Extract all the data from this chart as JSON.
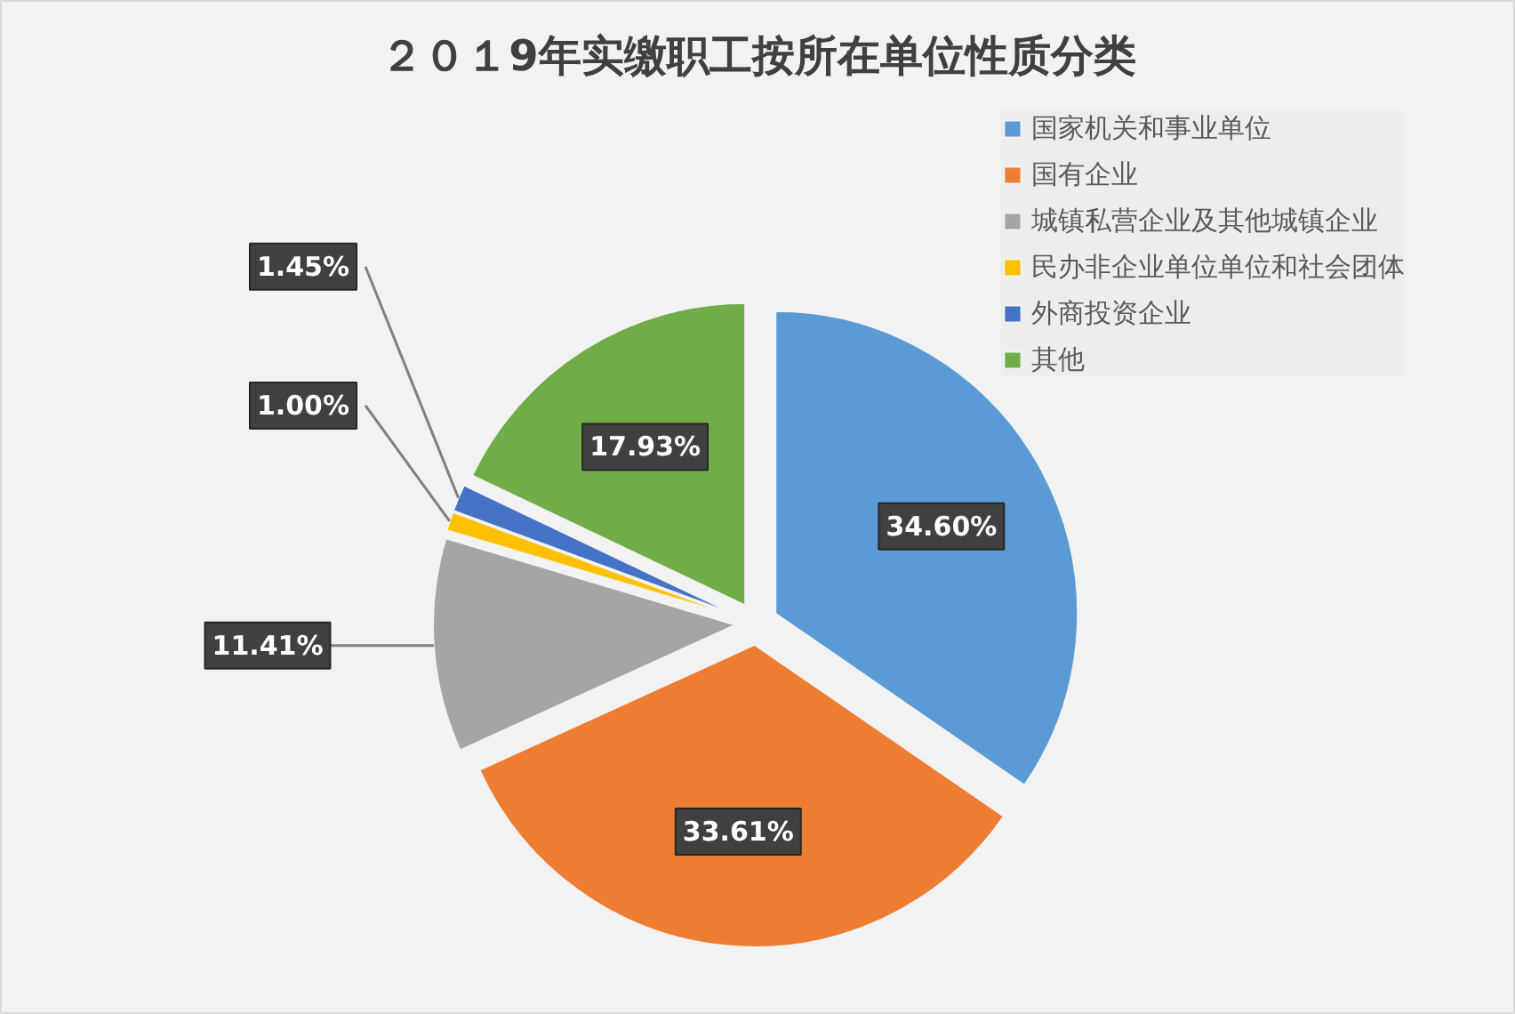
{
  "chart_data": {
    "type": "pie",
    "title": "２０１9年实缴职工按所在单位性质分类",
    "categories": [
      "国家机关和事业单位",
      "国有企业",
      "城镇私营企业及其他城镇企业",
      "民办非企业单位单位和社会团体",
      "外商投资企业",
      "其他"
    ],
    "values": [
      34.6,
      33.61,
      11.41,
      1.0,
      1.45,
      17.93
    ],
    "colors": [
      "#5b9bd5",
      "#ed7d31",
      "#a5a5a5",
      "#ffc000",
      "#4472c4",
      "#70ad47"
    ],
    "value_labels": [
      "34.60%",
      "33.61%",
      "11.41%",
      "1.00%",
      "1.45%",
      "17.93%"
    ],
    "legend": "top right"
  }
}
